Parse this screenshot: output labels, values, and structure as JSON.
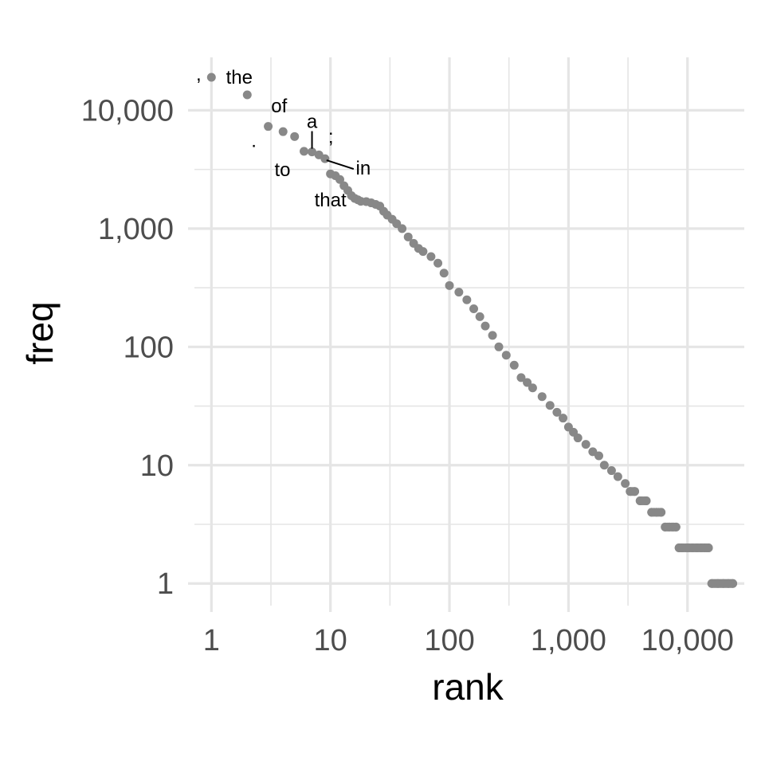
{
  "chart_data": {
    "type": "scatter",
    "title": "",
    "xlabel": "rank",
    "ylabel": "freq",
    "x_scale": "log10",
    "y_scale": "log10",
    "xlim": [
      0.72,
      30000
    ],
    "ylim": [
      0.65,
      28000
    ],
    "grid": true,
    "legend": "none",
    "point_color": "#888888",
    "x_ticks": [
      {
        "value": 1,
        "label": "1"
      },
      {
        "value": 10,
        "label": "10"
      },
      {
        "value": 100,
        "label": "100"
      },
      {
        "value": 1000,
        "label": "1,000"
      },
      {
        "value": 10000,
        "label": "10,000"
      }
    ],
    "y_ticks": [
      {
        "value": 1,
        "label": "1"
      },
      {
        "value": 10,
        "label": "10"
      },
      {
        "value": 100,
        "label": "100"
      },
      {
        "value": 1000,
        "label": "1,000"
      },
      {
        "value": 10000,
        "label": "10,000"
      }
    ],
    "x_minor": [
      3.162,
      31.62,
      316.2,
      3162,
      31620
    ],
    "y_minor": [
      3.162,
      31.62,
      316.2,
      3162,
      31620
    ],
    "labeled_points": [
      {
        "word": ",",
        "rank": 1,
        "freq": 19000
      },
      {
        "word": "the",
        "rank": 2,
        "freq": 13500
      },
      {
        "word": ".",
        "rank": 3,
        "freq": 7300
      },
      {
        "word": "of",
        "rank": 4,
        "freq": 6600
      },
      {
        "word": "to",
        "rank": 6,
        "freq": 4500
      },
      {
        "word": "a",
        "rank": 7,
        "freq": 4450
      },
      {
        "word": ";",
        "rank": 8,
        "freq": 4200
      },
      {
        "word": "in",
        "rank": 9,
        "freq": 3900
      },
      {
        "word": "that",
        "rank": 10,
        "freq": 2900
      }
    ],
    "series": [
      {
        "points": [
          [
            1,
            19000
          ],
          [
            2,
            13500
          ],
          [
            3,
            7300
          ],
          [
            4,
            6600
          ],
          [
            5,
            6000
          ],
          [
            6,
            4500
          ],
          [
            7,
            4450
          ],
          [
            8,
            4200
          ],
          [
            9,
            3900
          ],
          [
            10,
            2900
          ],
          [
            11,
            2800
          ],
          [
            12,
            2600
          ],
          [
            13,
            2300
          ],
          [
            14,
            2100
          ],
          [
            15,
            1900
          ],
          [
            16,
            1800
          ],
          [
            17,
            1750
          ],
          [
            18,
            1700
          ],
          [
            20,
            1690
          ],
          [
            22,
            1650
          ],
          [
            24,
            1600
          ],
          [
            26,
            1550
          ],
          [
            28,
            1400
          ],
          [
            30,
            1300
          ],
          [
            33,
            1200
          ],
          [
            36,
            1100
          ],
          [
            40,
            1000
          ],
          [
            45,
            850
          ],
          [
            50,
            750
          ],
          [
            55,
            680
          ],
          [
            60,
            640
          ],
          [
            70,
            580
          ],
          [
            80,
            510
          ],
          [
            90,
            420
          ],
          [
            100,
            330
          ],
          [
            120,
            290
          ],
          [
            140,
            250
          ],
          [
            160,
            210
          ],
          [
            180,
            180
          ],
          [
            200,
            150
          ],
          [
            230,
            125
          ],
          [
            260,
            100
          ],
          [
            300,
            85
          ],
          [
            350,
            70
          ],
          [
            400,
            55
          ],
          [
            450,
            50
          ],
          [
            500,
            45
          ],
          [
            600,
            38
          ],
          [
            700,
            32
          ],
          [
            800,
            28
          ],
          [
            900,
            25
          ],
          [
            1000,
            21
          ],
          [
            1100,
            19
          ],
          [
            1200,
            17
          ],
          [
            1400,
            15
          ],
          [
            1600,
            13
          ],
          [
            1800,
            12
          ],
          [
            2000,
            10
          ],
          [
            2300,
            9
          ],
          [
            2600,
            8
          ],
          [
            3000,
            7
          ],
          [
            3300,
            6
          ],
          [
            3600,
            6
          ],
          [
            4000,
            5
          ],
          [
            4500,
            5
          ],
          [
            5000,
            4
          ],
          [
            5500,
            4
          ],
          [
            6000,
            4
          ],
          [
            6500,
            3
          ],
          [
            7000,
            3
          ],
          [
            7500,
            3
          ],
          [
            8000,
            3
          ],
          [
            8500,
            2
          ],
          [
            9000,
            2
          ],
          [
            10000,
            2
          ],
          [
            11000,
            2
          ],
          [
            12000,
            2
          ],
          [
            13000,
            2
          ],
          [
            14000,
            2
          ],
          [
            15000,
            2
          ],
          [
            16000,
            1
          ],
          [
            18000,
            1
          ],
          [
            20000,
            1
          ],
          [
            22000,
            1
          ],
          [
            24000,
            1
          ]
        ]
      }
    ]
  }
}
